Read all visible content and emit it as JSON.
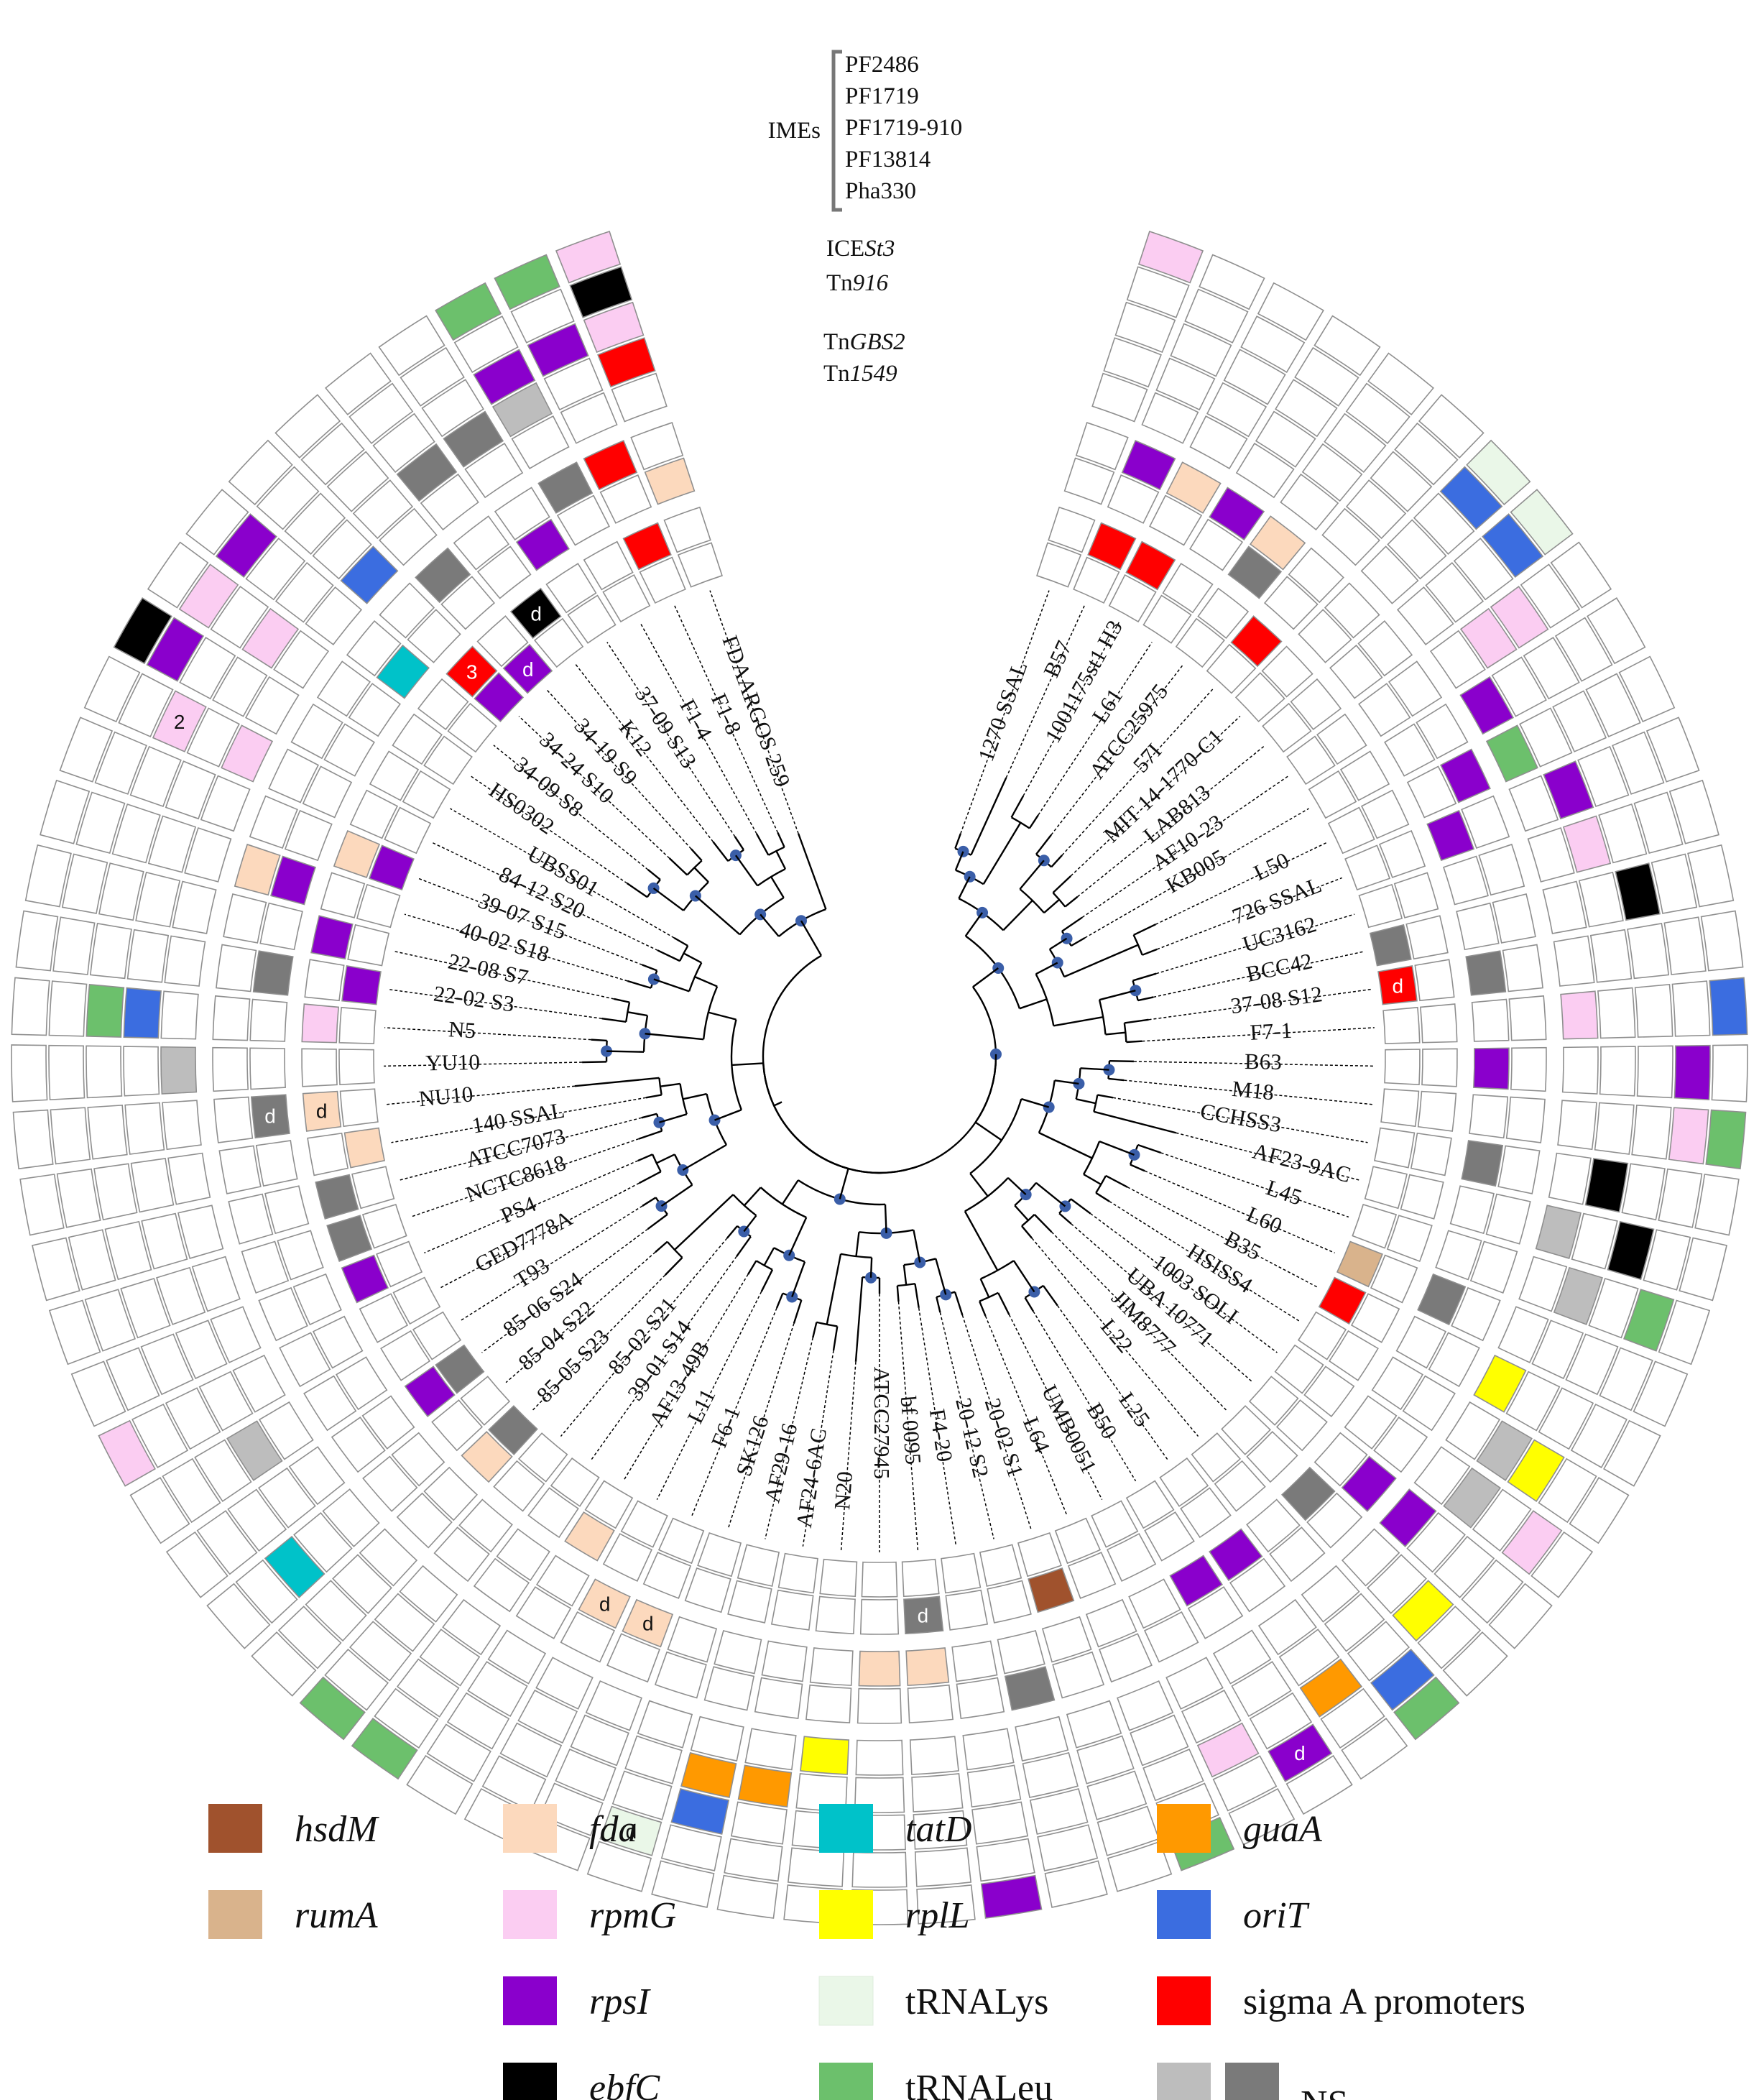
{
  "element_labels": {
    "imes_group": "IMEs",
    "imes": [
      "PF2486",
      "PF1719",
      "PF1719-910",
      "PF13814",
      "Pha330"
    ],
    "ice_prefix": "ICE",
    "ice_italic": "St3",
    "tn916_prefix": "Tn",
    "tn916_italic": "916",
    "tngbs2_prefix": "Tn",
    "tngbs2_italic": "GBS2",
    "tn1549_prefix": "Tn",
    "tn1549_italic": "1549"
  },
  "taxa": [
    "1270 SSAL",
    "B57",
    "1001175st1 H3",
    "L61",
    "ATCC25975",
    "57I",
    "MIT 14-1770-C1",
    "LAB813",
    "AF10-23",
    "KB005",
    "L50",
    "726 SSAL",
    "UC3162",
    "BCC42",
    "37-08 S12",
    "F7-1",
    "B63",
    "M18",
    "CCHSS3",
    "AF23-9AC",
    "L45",
    "L60",
    "B35",
    "HSISS4",
    "1003 SOLI",
    "UBA 10771",
    "JIM8777",
    "L22",
    "L25",
    "B50",
    "UMB0051",
    "L64",
    "20-02 S1",
    "20-12 S2",
    "F4-20",
    "bf 0095",
    "ATCC27945",
    "N20",
    "AF24-6AC",
    "AF29-16",
    "SK126",
    "F6-1",
    "L11",
    "AF13-49B",
    "39-01 S14",
    "85-02 S21",
    "85-05 S23",
    "85-04 S22",
    "85-06 S24",
    "T93",
    "GED7778A",
    "PS4",
    "NCTC8618",
    "ATCC7073",
    "140 SSAL",
    "NU10",
    "YU10",
    "N5",
    "22-02 S3",
    "22-08 S7",
    "40-02 S18",
    "39-07 S15",
    "84-12 S20",
    "UBSS01",
    "HS0302",
    "34-09 S8",
    "34-24 S10",
    "34-19 S9",
    "K12",
    "37-09 S13",
    "F1-4",
    "F1-8",
    "FDAARGOS 259"
  ],
  "legend": [
    {
      "label": "hsdM",
      "italic": true,
      "color": "#a0522d"
    },
    {
      "label": "rumA",
      "italic": true,
      "color": "#d9b38c"
    },
    {
      "label": "fda",
      "italic": true,
      "color": "#fcd9bd"
    },
    {
      "label": "rpmG",
      "italic": true,
      "color": "#fbcdf2"
    },
    {
      "label": "rpsI",
      "italic": true,
      "color": "#8a00cc"
    },
    {
      "label": "ebfC",
      "italic": true,
      "color": "#000000"
    },
    {
      "label": "tatD",
      "italic": true,
      "color": "#00c2c9"
    },
    {
      "label": "rplL",
      "italic": true,
      "color": "#ffff00"
    },
    {
      "label": "tRNALys",
      "italic": false,
      "color": "#eaf7e8"
    },
    {
      "label": "tRNALeu",
      "italic": false,
      "color": "#6cc06c"
    },
    {
      "label": "guaA",
      "italic": true,
      "color": "#ff9900"
    },
    {
      "label": "oriT",
      "italic": true,
      "color": "#3b6de0"
    },
    {
      "label": "sigma A promoters",
      "italic": false,
      "color": "#ff0000"
    },
    {
      "label": "NS",
      "italic": false,
      "colors": [
        "#bdbdbd",
        "#7a7a7a"
      ]
    }
  ],
  "cell_marks": [
    "d",
    "2",
    "3"
  ],
  "colors": {
    "cell_empty": "#ffffff",
    "cell_stroke": "#8f8f8f",
    "node": "#3a5ea8"
  }
}
